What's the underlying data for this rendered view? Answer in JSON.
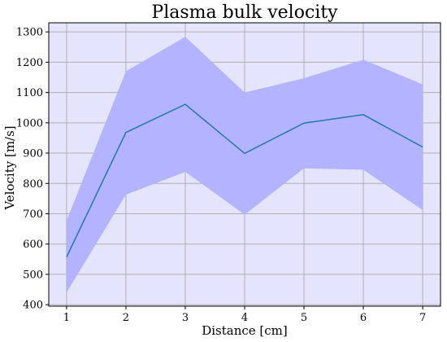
{
  "chart_data": {
    "type": "line",
    "title": "Plasma bulk velocity",
    "xlabel": "Distance [cm]",
    "ylabel": "Velocity [m/s]",
    "x": [
      1,
      2,
      3,
      4,
      5,
      6,
      7
    ],
    "xticks": [
      "1",
      "2",
      "3",
      "4",
      "5",
      "6",
      "7"
    ],
    "yticks": [
      "400",
      "500",
      "600",
      "700",
      "800",
      "900",
      "1000",
      "1100",
      "1200",
      "1300"
    ],
    "ytick_values": [
      400,
      500,
      600,
      700,
      800,
      900,
      1000,
      1100,
      1200,
      1300
    ],
    "xlim": [
      0.7,
      7.3
    ],
    "ylim": [
      395,
      1330
    ],
    "grid": true,
    "series": [
      {
        "values": [
          557,
          968,
          1061,
          899,
          999,
          1027,
          920
        ],
        "lower": [
          440,
          763,
          838,
          697,
          850,
          845,
          712
        ],
        "upper": [
          677,
          1170,
          1284,
          1100,
          1147,
          1208,
          1127
        ],
        "line_color": "#1f77b4",
        "band_color": "#b3b3ff"
      }
    ],
    "plot_background": "#e4e4fd"
  }
}
